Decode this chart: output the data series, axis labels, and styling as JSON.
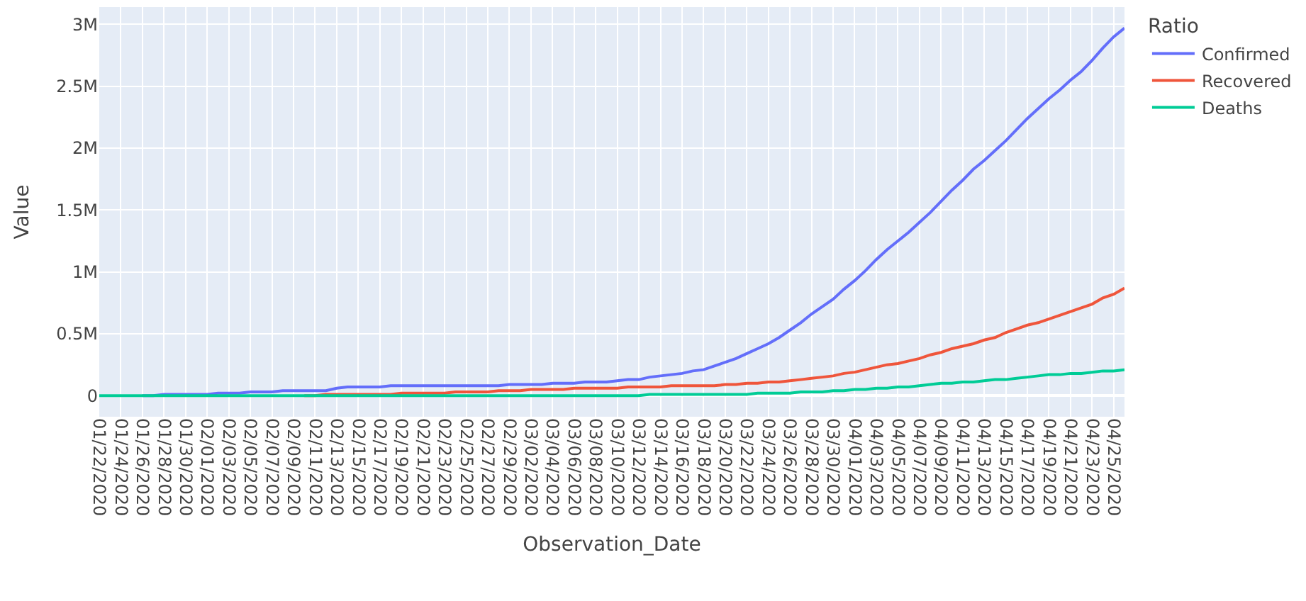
{
  "chart_data": {
    "type": "line",
    "xlabel": "Observation_Date",
    "ylabel": "Value",
    "legend_title": "Ratio",
    "legend": "top right",
    "grid": true,
    "categories": [
      "01/22/2020",
      null,
      "01/24/2020",
      null,
      "01/26/2020",
      null,
      "01/28/2020",
      null,
      "01/30/2020",
      null,
      "02/01/2020",
      null,
      "02/03/2020",
      null,
      "02/05/2020",
      null,
      "02/07/2020",
      null,
      "02/09/2020",
      null,
      "02/11/2020",
      null,
      "02/13/2020",
      null,
      "02/15/2020",
      null,
      "02/17/2020",
      null,
      "02/19/2020",
      null,
      "02/21/2020",
      null,
      "02/23/2020",
      null,
      "02/25/2020",
      null,
      "02/27/2020",
      null,
      "02/29/2020",
      null,
      "03/02/2020",
      null,
      "03/04/2020",
      null,
      "03/06/2020",
      null,
      "03/08/2020",
      null,
      "03/10/2020",
      null,
      "03/12/2020",
      null,
      "03/14/2020",
      null,
      "03/16/2020",
      null,
      "03/18/2020",
      null,
      "03/20/2020",
      null,
      "03/22/2020",
      null,
      "03/24/2020",
      null,
      "03/26/2020",
      null,
      "03/28/2020",
      null,
      "03/30/2020",
      null,
      "04/01/2020",
      null,
      "04/03/2020",
      null,
      "04/05/2020",
      null,
      "04/07/2020",
      null,
      "04/09/2020",
      null,
      "04/11/2020",
      null,
      "04/13/2020",
      null,
      "04/15/2020",
      null,
      "04/17/2020",
      null,
      "04/19/2020",
      null,
      "04/21/2020",
      null,
      "04/23/2020",
      null,
      "04/25/2020",
      null
    ],
    "ylim": [
      -170000,
      3140000
    ],
    "yticks": [
      0,
      {
        "value": 500000,
        "label": "0.5M"
      },
      {
        "value": 1000000,
        "label": "1M"
      },
      {
        "value": 1500000,
        "label": "1.5M"
      },
      {
        "value": 2000000,
        "label": "2M"
      },
      {
        "value": 2500000,
        "label": "2.5M"
      },
      {
        "value": 3000000,
        "label": "3M"
      }
    ],
    "series": [
      {
        "name": "Confirmed",
        "color": "#636efa",
        "values": [
          null,
          null,
          null,
          null,
          0,
          0,
          10000,
          10000,
          10000,
          10000,
          10000,
          20000,
          20000,
          20000,
          30000,
          30000,
          30000,
          40000,
          40000,
          40000,
          40000,
          40000,
          60000,
          70000,
          70000,
          70000,
          70000,
          80000,
          80000,
          80000,
          80000,
          80000,
          80000,
          80000,
          80000,
          80000,
          80000,
          80000,
          90000,
          90000,
          90000,
          90000,
          100000,
          100000,
          100000,
          110000,
          110000,
          110000,
          120000,
          130000,
          130000,
          150000,
          160000,
          170000,
          180000,
          200000,
          210000,
          240000,
          270000,
          300000,
          340000,
          380000,
          420000,
          470000,
          530000,
          590000,
          660000,
          720000,
          780000,
          860000,
          930000,
          1010000,
          1100000,
          1180000,
          1250000,
          1320000,
          1400000,
          1480000,
          1570000,
          1660000,
          1740000,
          1830000,
          1900000,
          1980000,
          2060000,
          2150000,
          2240000,
          2320000,
          2400000,
          2470000,
          2550000,
          2620000,
          2710000,
          2810000,
          2900000,
          2970000
        ]
      },
      {
        "name": "Recovered",
        "color": "#ef553b",
        "values": [
          null,
          null,
          null,
          null,
          null,
          null,
          null,
          null,
          null,
          null,
          null,
          null,
          null,
          null,
          null,
          null,
          null,
          null,
          null,
          0,
          0,
          10000,
          10000,
          10000,
          10000,
          10000,
          10000,
          10000,
          20000,
          20000,
          20000,
          20000,
          20000,
          30000,
          30000,
          30000,
          30000,
          40000,
          40000,
          40000,
          50000,
          50000,
          50000,
          50000,
          60000,
          60000,
          60000,
          60000,
          60000,
          70000,
          70000,
          70000,
          70000,
          80000,
          80000,
          80000,
          80000,
          80000,
          90000,
          90000,
          100000,
          100000,
          110000,
          110000,
          120000,
          130000,
          140000,
          150000,
          160000,
          180000,
          190000,
          210000,
          230000,
          250000,
          260000,
          280000,
          300000,
          330000,
          350000,
          380000,
          400000,
          420000,
          450000,
          470000,
          510000,
          540000,
          570000,
          590000,
          620000,
          650000,
          680000,
          710000,
          740000,
          790000,
          820000,
          870000
        ]
      },
      {
        "name": "Deaths",
        "color": "#00cc96",
        "values": [
          0,
          0,
          0,
          0,
          0,
          0,
          0,
          0,
          0,
          0,
          0,
          0,
          0,
          0,
          0,
          0,
          0,
          0,
          0,
          0,
          0,
          0,
          0,
          0,
          0,
          0,
          0,
          0,
          0,
          0,
          0,
          0,
          0,
          0,
          0,
          0,
          0,
          0,
          0,
          0,
          0,
          0,
          0,
          0,
          0,
          0,
          0,
          0,
          0,
          0,
          0,
          10000,
          10000,
          10000,
          10000,
          10000,
          10000,
          10000,
          10000,
          10000,
          10000,
          20000,
          20000,
          20000,
          20000,
          30000,
          30000,
          30000,
          40000,
          40000,
          50000,
          50000,
          60000,
          60000,
          70000,
          70000,
          80000,
          90000,
          100000,
          100000,
          110000,
          110000,
          120000,
          130000,
          130000,
          140000,
          150000,
          160000,
          170000,
          170000,
          180000,
          180000,
          190000,
          200000,
          200000,
          210000
        ]
      }
    ]
  }
}
